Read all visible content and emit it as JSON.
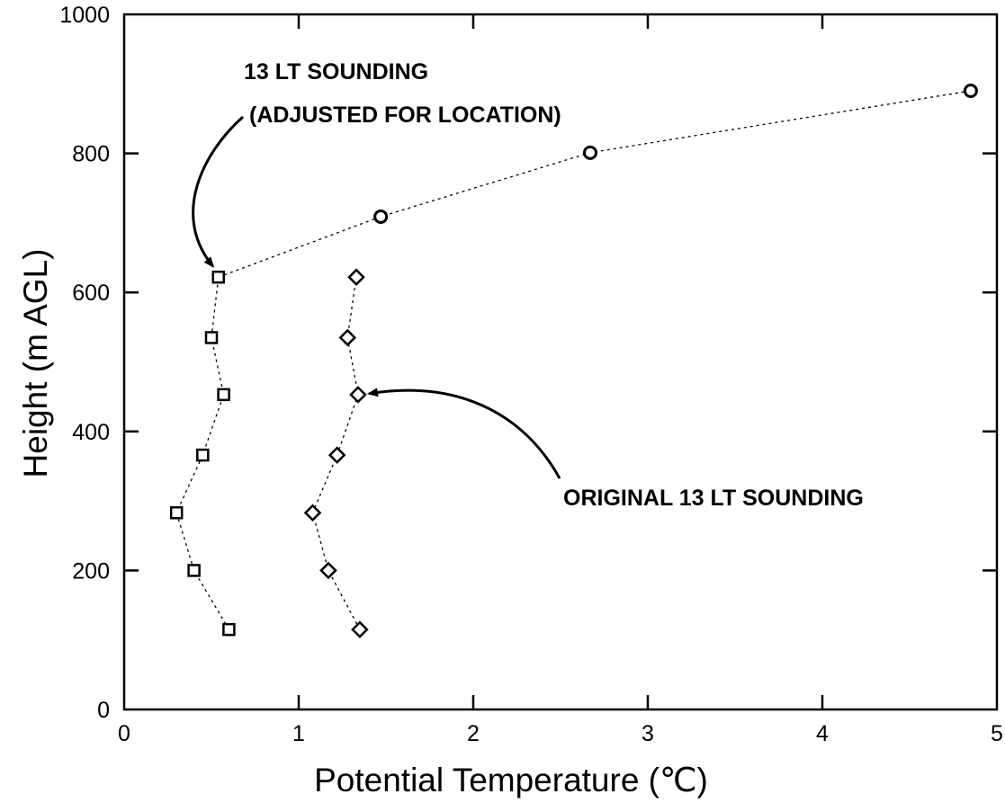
{
  "chart_data": {
    "type": "scatter",
    "xlabel": "Potential Temperature (℃)",
    "ylabel": "Height (m AGL)",
    "xlim": [
      0,
      5
    ],
    "ylim": [
      0,
      1000
    ],
    "xticks": [
      0,
      1,
      2,
      3,
      4,
      5
    ],
    "yticks": [
      0,
      200,
      400,
      600,
      800,
      1000
    ],
    "grid": false,
    "series": [
      {
        "marker": "square",
        "points": [
          {
            "x": 0.6,
            "y": 115
          },
          {
            "x": 0.4,
            "y": 200
          },
          {
            "x": 0.3,
            "y": 283
          },
          {
            "x": 0.45,
            "y": 366
          },
          {
            "x": 0.57,
            "y": 453
          },
          {
            "x": 0.5,
            "y": 535
          },
          {
            "x": 0.54,
            "y": 622
          }
        ]
      },
      {
        "marker": "diamond",
        "points": [
          {
            "x": 1.35,
            "y": 115
          },
          {
            "x": 1.17,
            "y": 200
          },
          {
            "x": 1.08,
            "y": 283
          },
          {
            "x": 1.22,
            "y": 366
          },
          {
            "x": 1.34,
            "y": 453
          },
          {
            "x": 1.28,
            "y": 535
          },
          {
            "x": 1.33,
            "y": 622
          }
        ]
      },
      {
        "marker": "circle",
        "points": [
          {
            "x": 1.47,
            "y": 709
          },
          {
            "x": 2.67,
            "y": 801
          },
          {
            "x": 4.85,
            "y": 890
          }
        ]
      }
    ],
    "annotations": [
      {
        "lines": [
          "13 LT SOUNDING",
          "(ADJUSTED FOR LOCATION)"
        ],
        "target": {
          "x": 0.54,
          "y": 622
        }
      },
      {
        "lines": [
          "ORIGINAL 13 LT SOUNDING"
        ],
        "target": {
          "x": 1.34,
          "y": 453
        }
      }
    ]
  }
}
